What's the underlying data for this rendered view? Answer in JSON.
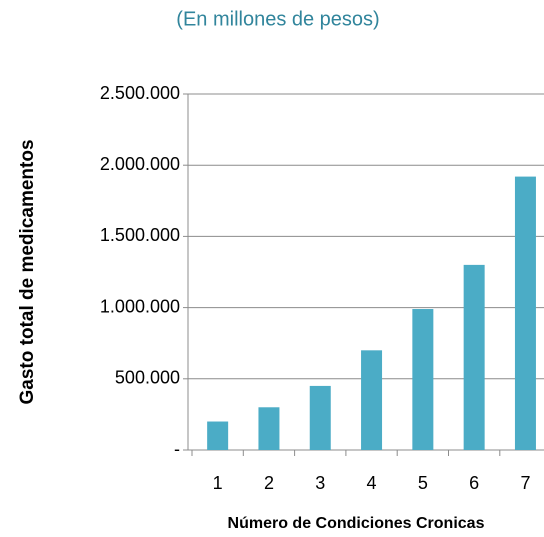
{
  "chart_data": {
    "type": "bar",
    "subtitle": "(En millones de pesos)",
    "y_label": "Gasto total de medicamentos",
    "x_label": "Número de Condiciones Cronicas",
    "categories": [
      "1",
      "2",
      "3",
      "4",
      "5",
      "6",
      "7"
    ],
    "values": [
      200000,
      300000,
      450000,
      700000,
      990000,
      1300000,
      1920000
    ],
    "color": "#4bacc6",
    "ylim": [
      0,
      2500000
    ],
    "yticks": [
      {
        "value": 0,
        "label": "-"
      },
      {
        "value": 500000,
        "label": "500.000"
      },
      {
        "value": 1000000,
        "label": "1.000.000"
      },
      {
        "value": 1500000,
        "label": "1.500.000"
      },
      {
        "value": 2000000,
        "label": "2.000.000"
      },
      {
        "value": 2500000,
        "label": "2.500.000"
      }
    ],
    "grid": true
  }
}
